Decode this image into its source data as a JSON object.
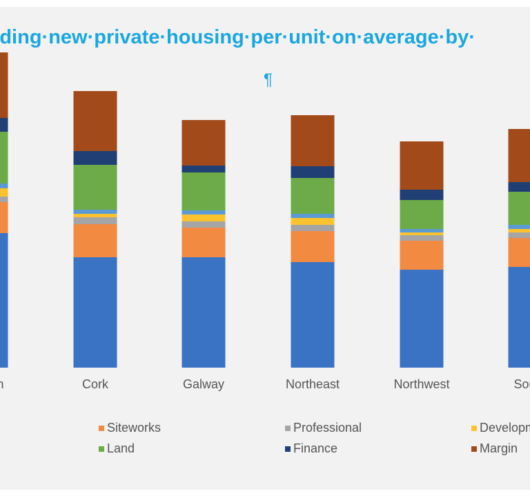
{
  "chart_data": {
    "type": "bar",
    "stacked": true,
    "title": "riding·new·private·housing·per·unit·on·average·by·",
    "annotation": "¶",
    "categories": [
      "Dublin",
      "Cork",
      "Galway",
      "Northeast",
      "Northwest",
      "South"
    ],
    "series": [
      {
        "key": "construction",
        "color": "#3a72c4",
        "values": [
          195,
          160,
          160,
          153,
          142,
          146
        ]
      },
      {
        "name": "Siteworks",
        "color": "#f28a42",
        "values": [
          45,
          48,
          43,
          45,
          42,
          42
        ]
      },
      {
        "name": "Professional",
        "color": "#a5a5a5",
        "values": [
          8,
          10,
          9,
          9,
          8,
          8
        ]
      },
      {
        "name": "Development levies",
        "color": "#fdc22e",
        "values": [
          12,
          5,
          10,
          10,
          4,
          5
        ]
      },
      {
        "name": "VAT",
        "color": "#5b9bd5",
        "values": [
          7,
          6,
          6,
          6,
          5,
          6
        ]
      },
      {
        "name": "Land",
        "color": "#6cab47",
        "values": [
          75,
          65,
          55,
          52,
          42,
          48
        ]
      },
      {
        "name": "Finance",
        "color": "#1f3f75",
        "values": [
          20,
          20,
          10,
          17,
          15,
          14
        ]
      },
      {
        "name": "Margin",
        "color": "#a34a1a",
        "values": [
          95,
          87,
          66,
          74,
          70,
          77
        ]
      }
    ],
    "legend": [
      {
        "label": "Siteworks",
        "color": "#f28a42"
      },
      {
        "label": "Professional",
        "color": "#a5a5a5"
      },
      {
        "label": "Developm",
        "color": "#fdc22e"
      },
      {
        "label": "Land",
        "color": "#6cab47"
      },
      {
        "label": "Finance",
        "color": "#1f3f75"
      },
      {
        "label": "Margin",
        "color": "#a34a1a"
      }
    ],
    "legend_position": "bottom",
    "ylim": [
      0,
      460
    ],
    "grid": false
  }
}
